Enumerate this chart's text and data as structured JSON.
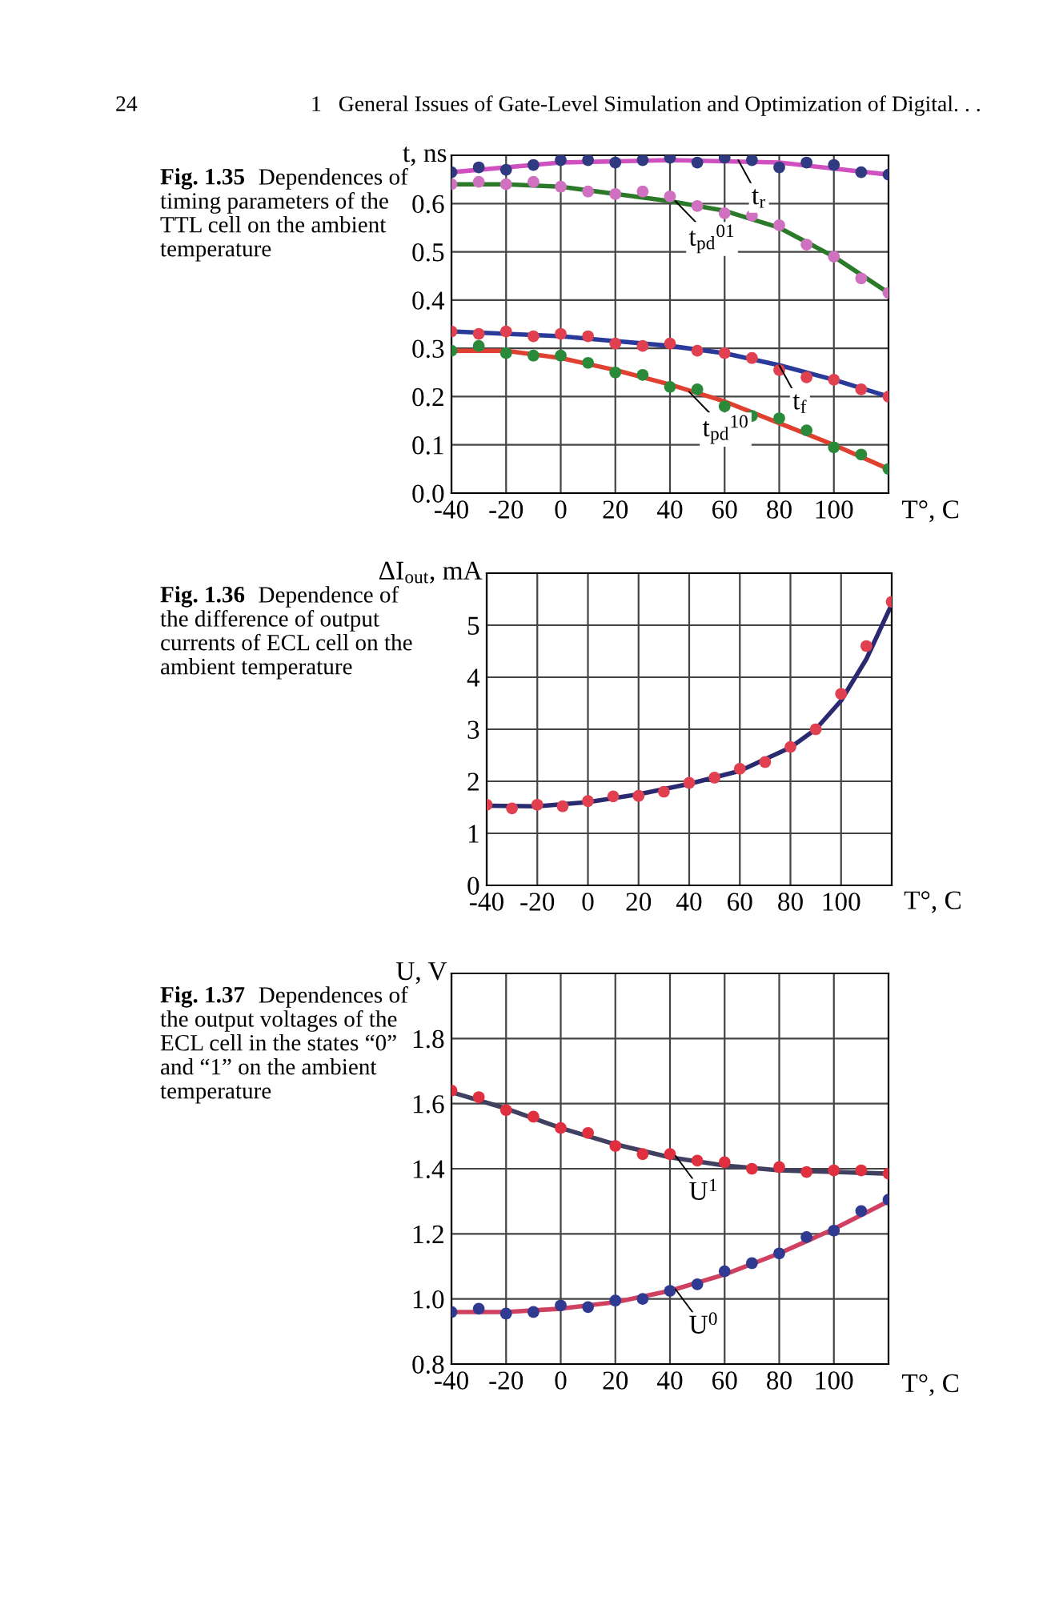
{
  "chart_data": [
    {
      "type": "scatter",
      "xlabel": "T°, C",
      "ylabel": "t, ns",
      "xlim": [
        -40,
        120
      ],
      "xticks": [
        -40,
        -20,
        0,
        20,
        40,
        60,
        80,
        100
      ],
      "ylim": [
        0,
        0.7
      ],
      "yticks": [
        {
          "value": 0,
          "label": "0.0"
        },
        0.1,
        0.2,
        0.3,
        0.4,
        0.5,
        0.6
      ],
      "grid": true,
      "series": [
        {
          "type": "line",
          "color": "#d050c0",
          "x": [
            -40,
            0,
            40,
            80,
            120
          ],
          "values": [
            0.665,
            0.685,
            0.69,
            0.685,
            0.66
          ]
        },
        {
          "type": "scatter",
          "marker": "circle",
          "color": "#303a80",
          "x": [
            -40,
            -30,
            -20,
            -10,
            0,
            10,
            20,
            30,
            40,
            50,
            60,
            70,
            80,
            90,
            100,
            110,
            120
          ],
          "values": [
            0.665,
            0.675,
            0.67,
            0.68,
            0.69,
            0.69,
            0.685,
            0.69,
            0.695,
            0.685,
            0.695,
            0.69,
            0.675,
            0.685,
            0.68,
            0.665,
            0.66
          ]
        },
        {
          "type": "line",
          "color": "#2a7a2a",
          "x": [
            -40,
            -20,
            0,
            20,
            40,
            60,
            80,
            100,
            120
          ],
          "values": [
            0.64,
            0.64,
            0.635,
            0.62,
            0.605,
            0.585,
            0.55,
            0.49,
            0.415
          ]
        },
        {
          "type": "scatter",
          "marker": "circle",
          "color": "#d070c0",
          "x": [
            -40,
            -30,
            -20,
            -10,
            0,
            10,
            20,
            30,
            40,
            50,
            60,
            70,
            80,
            90,
            100,
            110,
            120
          ],
          "values": [
            0.64,
            0.645,
            0.64,
            0.645,
            0.635,
            0.625,
            0.62,
            0.625,
            0.615,
            0.595,
            0.58,
            0.575,
            0.555,
            0.515,
            0.49,
            0.445,
            0.415
          ]
        },
        {
          "type": "line",
          "color": "#2a3a9a",
          "x": [
            -40,
            -20,
            0,
            20,
            40,
            60,
            80,
            100,
            120
          ],
          "values": [
            0.335,
            0.33,
            0.325,
            0.315,
            0.305,
            0.29,
            0.265,
            0.235,
            0.2
          ]
        },
        {
          "type": "scatter",
          "marker": "circle",
          "color": "#e04050",
          "x": [
            -40,
            -30,
            -20,
            -10,
            0,
            10,
            20,
            30,
            40,
            50,
            60,
            70,
            80,
            90,
            100,
            110,
            120
          ],
          "values": [
            0.335,
            0.33,
            0.335,
            0.325,
            0.33,
            0.325,
            0.31,
            0.305,
            0.31,
            0.295,
            0.29,
            0.28,
            0.255,
            0.24,
            0.235,
            0.215,
            0.2
          ]
        },
        {
          "type": "line",
          "color": "#e04030",
          "x": [
            -40,
            -20,
            0,
            20,
            40,
            60,
            80,
            100,
            120
          ],
          "values": [
            0.295,
            0.295,
            0.28,
            0.255,
            0.225,
            0.19,
            0.145,
            0.1,
            0.05
          ]
        },
        {
          "type": "scatter",
          "marker": "circle",
          "color": "#2a8a3a",
          "x": [
            -40,
            -30,
            -20,
            -10,
            0,
            10,
            20,
            30,
            40,
            50,
            60,
            70,
            80,
            90,
            100,
            110,
            120
          ],
          "values": [
            0.295,
            0.305,
            0.29,
            0.285,
            0.285,
            0.27,
            0.25,
            0.245,
            0.22,
            0.215,
            0.18,
            0.16,
            0.155,
            0.13,
            0.095,
            0.08,
            0.05
          ]
        }
      ],
      "annotations": [
        "24",
        "1   General Issues of Gate-Level Simulation and Optimization of Digital. . .",
        "Fig. 1.35",
        "Dependences of\ntiming parameters of the\nTTL cell on the ambient\ntemperature",
        {
          "text": "t$_{r}$",
          "x": 65,
          "y": 0.69
        },
        {
          "text": "t$_{pd}$$^{01}$",
          "x": 42,
          "y": 0.605
        },
        {
          "text": "t$_{f}$",
          "x": 80,
          "y": 0.265
        },
        {
          "text": "t$_{pd}$$^{10}$",
          "x": 47,
          "y": 0.21
        }
      ]
    },
    {
      "type": "scatter",
      "annotations": [
        "Fig. 1.36",
        "Dependence of\nthe difference of output\ncurrents of ECL cell on the\nambient temperature"
      ],
      "xlabel": "T°, C",
      "ylabel": "ΔI$_{out}$, mA",
      "xlim": [
        -40,
        120
      ],
      "xticks": [
        -40,
        -20,
        0,
        20,
        40,
        60,
        80,
        100
      ],
      "ylim": [
        0,
        6
      ],
      "yticks": [
        0,
        1,
        2,
        3,
        4,
        5
      ],
      "grid": true,
      "series": [
        {
          "type": "line",
          "color": "#2a2a70",
          "x": [
            -40,
            -20,
            0,
            20,
            40,
            60,
            80,
            90,
            100,
            110,
            120
          ],
          "values": [
            1.53,
            1.52,
            1.6,
            1.75,
            1.95,
            2.2,
            2.65,
            3.0,
            3.55,
            4.35,
            5.4
          ]
        },
        {
          "type": "scatter",
          "marker": "circle",
          "color": "#e04050",
          "x": [
            -40,
            -30,
            -20,
            -10,
            0,
            10,
            20,
            30,
            40,
            50,
            60,
            70,
            80,
            90,
            100,
            110,
            120
          ],
          "values": [
            1.55,
            1.48,
            1.55,
            1.52,
            1.62,
            1.71,
            1.72,
            1.8,
            1.97,
            2.07,
            2.24,
            2.37,
            2.66,
            3.0,
            3.68,
            4.6,
            5.45
          ]
        }
      ]
    },
    {
      "type": "scatter",
      "xlabel": "T°, C",
      "ylabel": "U, V",
      "xlim": [
        -40,
        120
      ],
      "xticks": [
        -40,
        -20,
        0,
        20,
        40,
        60,
        80,
        100
      ],
      "ylim": [
        0.8,
        2.0
      ],
      "yticks": [
        0.8,
        {
          "value": 1.0,
          "label": "1.0"
        },
        1.2,
        1.4,
        1.6,
        1.8
      ],
      "grid": true,
      "series": [
        {
          "type": "line",
          "color": "#404060",
          "x": [
            -40,
            -20,
            0,
            20,
            40,
            60,
            80,
            100,
            120
          ],
          "values": [
            1.635,
            1.585,
            1.525,
            1.475,
            1.435,
            1.41,
            1.395,
            1.39,
            1.385
          ]
        },
        {
          "type": "scatter",
          "marker": "circle",
          "color": "#e03040",
          "x": [
            -40,
            -30,
            -20,
            -10,
            0,
            10,
            20,
            30,
            40,
            50,
            60,
            70,
            80,
            90,
            100,
            110,
            120
          ],
          "values": [
            1.64,
            1.62,
            1.58,
            1.56,
            1.525,
            1.51,
            1.47,
            1.445,
            1.445,
            1.425,
            1.42,
            1.4,
            1.405,
            1.39,
            1.395,
            1.395,
            1.385
          ]
        },
        {
          "type": "line",
          "color": "#d04060",
          "x": [
            -40,
            -20,
            0,
            20,
            40,
            60,
            80,
            100,
            120
          ],
          "values": [
            0.96,
            0.96,
            0.97,
            0.99,
            1.025,
            1.075,
            1.14,
            1.215,
            1.3
          ]
        },
        {
          "type": "scatter",
          "marker": "circle",
          "color": "#303a90",
          "x": [
            -40,
            -30,
            -20,
            -10,
            0,
            10,
            20,
            30,
            40,
            50,
            60,
            70,
            80,
            90,
            100,
            110,
            120
          ],
          "values": [
            0.96,
            0.97,
            0.955,
            0.96,
            0.98,
            0.975,
            0.995,
            1.0,
            1.025,
            1.045,
            1.085,
            1.11,
            1.14,
            1.19,
            1.21,
            1.27,
            1.305
          ]
        }
      ],
      "annotations": [
        "Fig. 1.37",
        "Dependences of\nthe output voltages of the\nECL cell in the states “0”\nand “1” on the ambient\ntemperature",
        {
          "text": "U$^{1}$",
          "x": 42,
          "y": 1.44
        },
        {
          "text": "U$^{0}$",
          "x": 42,
          "y": 1.03
        }
      ]
    }
  ]
}
